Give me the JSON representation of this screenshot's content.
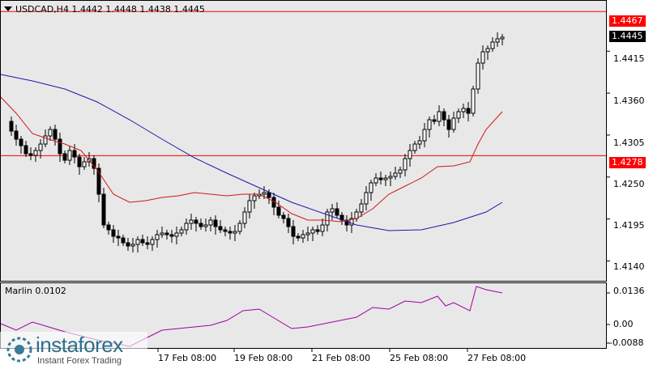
{
  "chart_header": {
    "symbol_line": "USDCAD,H4  1.4442 1.4448 1.4438 1.4445"
  },
  "indicator": {
    "label": "Marlin 0.0102"
  },
  "price_axis": [
    "1.4415",
    "1.4360",
    "1.4305",
    "1.4250",
    "1.4195",
    "1.4140"
  ],
  "indicator_axis": [
    "0.0136",
    "0.00",
    "-0.0088"
  ],
  "time_axis": [
    "17 Feb 08:00",
    "19 Feb 08:00",
    "21 Feb 08:00",
    "25 Feb 08:00",
    "27 Feb 08:00"
  ],
  "levels": {
    "upper": {
      "label": "1.4467",
      "color": "#ff0000"
    },
    "lower": {
      "label": "1.4278",
      "color": "#ff0000"
    },
    "current": {
      "label": "1.4445",
      "color": "#000000"
    }
  },
  "watermark": {
    "brand": "instaforex",
    "tagline": "Instant Forex Trading"
  },
  "colors": {
    "background": "#e8e8e8",
    "candles": "#000000",
    "ma_slow": "#1a1aa8",
    "ma_fast": "#d01818",
    "oscillator": "#a000a0"
  },
  "chart_data": {
    "type": "candlestick",
    "ylim": [
      1.4115,
      1.448
    ],
    "series": [
      {
        "name": "candles",
        "count": 96
      },
      {
        "name": "ma_fast"
      },
      {
        "name": "ma_slow"
      }
    ],
    "close_start": 1.433,
    "close_end": 1.4445
  }
}
